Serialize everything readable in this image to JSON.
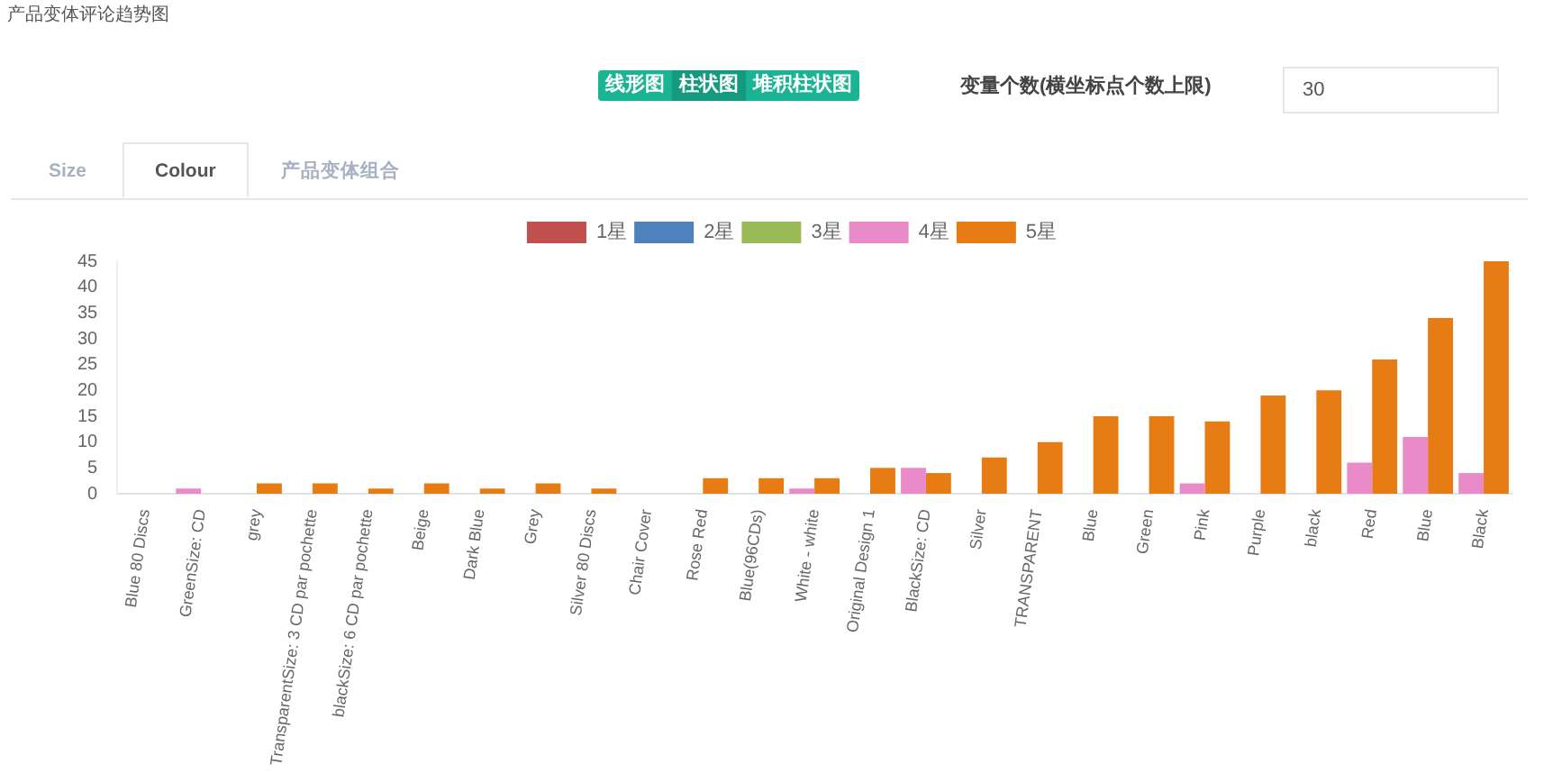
{
  "chart_data": {
    "type": "bar",
    "title": "产品变体评论趋势图",
    "annotations": [
      "线形图",
      "柱状图",
      "堆积柱状图",
      "变量个数(横坐标点个数上限)",
      "30",
      "Size",
      "Colour",
      "产品变体组合"
    ],
    "categories": [
      "Blue 80 Discs",
      "GreenSize: CD",
      "grey",
      "TransparentSize: 3 CD par pochette",
      "blackSize: 6 CD par pochette",
      "Beige",
      "Dark Blue",
      "Grey",
      "Silver 80 Discs",
      "Chair Cover",
      "Rose Red",
      "Blue(96CDs)",
      "White - white",
      "Original Design 1",
      "BlackSize: CD",
      "Silver",
      "TRANSPARENT",
      "Blue",
      "Green",
      "Pink",
      "Purple",
      "black",
      "Red",
      "Blue",
      "Black"
    ],
    "series": [
      {
        "name": "1星",
        "color": "#c0504d",
        "values": [
          null,
          null,
          null,
          null,
          null,
          null,
          null,
          null,
          null,
          null,
          null,
          null,
          null,
          null,
          null,
          null,
          null,
          null,
          null,
          null,
          null,
          null,
          null,
          null,
          null
        ]
      },
      {
        "name": "2星",
        "color": "#4f81bd",
        "values": [
          null,
          null,
          null,
          null,
          null,
          null,
          null,
          null,
          null,
          null,
          null,
          null,
          null,
          null,
          null,
          null,
          null,
          null,
          null,
          null,
          null,
          null,
          null,
          null,
          null
        ]
      },
      {
        "name": "3星",
        "color": "#9bbb59",
        "values": [
          null,
          null,
          null,
          null,
          null,
          null,
          null,
          null,
          null,
          null,
          null,
          null,
          null,
          null,
          null,
          null,
          null,
          null,
          null,
          null,
          null,
          null,
          null,
          null,
          null
        ]
      },
      {
        "name": "4星",
        "color": "#e88bc8",
        "values": [
          0,
          1,
          0,
          0,
          0,
          0,
          0,
          0,
          0,
          0,
          0,
          0,
          1,
          0,
          5,
          0,
          0,
          0,
          0,
          2,
          0,
          0,
          6,
          11,
          4
        ]
      },
      {
        "name": "5星",
        "color": "#e67c13",
        "values": [
          0,
          0,
          2,
          2,
          1,
          2,
          1,
          2,
          1,
          0,
          3,
          3,
          3,
          5,
          4,
          7,
          10,
          15,
          15,
          14,
          19,
          20,
          26,
          34,
          45
        ]
      }
    ],
    "ylim": [
      0,
      45
    ],
    "yticks": [
      0,
      5,
      10,
      15,
      20,
      25,
      30,
      35,
      40,
      45
    ],
    "grid": false,
    "legend": "top"
  }
}
